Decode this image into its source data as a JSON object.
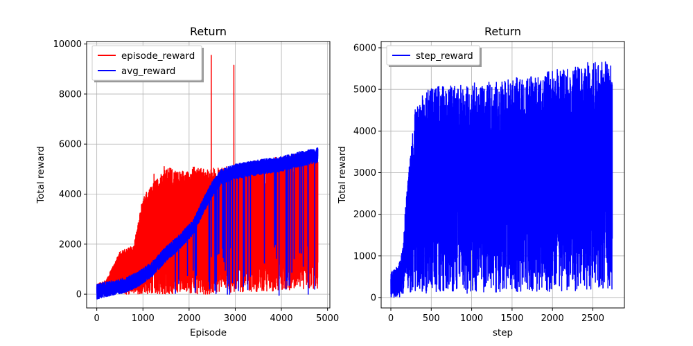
{
  "chart_data": [
    {
      "type": "line",
      "title": "Return",
      "xlabel": "Episode",
      "ylabel": "Total reward",
      "xlim": [
        -220,
        5050
      ],
      "ylim": [
        -550,
        10100
      ],
      "xticks": [
        0,
        1000,
        2000,
        3000,
        4000,
        5000
      ],
      "yticks": [
        0,
        2000,
        4000,
        6000,
        8000,
        10000
      ],
      "grid": true,
      "legend_position": "top-left",
      "series": [
        {
          "name": "episode_reward",
          "color": "#ff0000",
          "n_points": 4800,
          "envelope_x": [
            0,
            200,
            500,
            800,
            1000,
            1300,
            1500,
            1800,
            2100,
            2400,
            2800,
            3200,
            3600,
            4000,
            4400,
            4790
          ],
          "envelope_high": [
            400,
            550,
            1700,
            1950,
            3900,
            4600,
            5100,
            4900,
            5100,
            5000,
            5100,
            5250,
            5400,
            5500,
            5650,
            5700
          ],
          "envelope_low": [
            0,
            0,
            0,
            0,
            0,
            0,
            0,
            0,
            0,
            0,
            50,
            100,
            100,
            150,
            200,
            200
          ],
          "spikes": [
            [
              2480,
              9550
            ],
            [
              2970,
              9150
            ],
            [
              1240,
              4800
            ],
            [
              1460,
              5100
            ]
          ]
        },
        {
          "name": "avg_reward",
          "color": "#0000ff",
          "n_points": 4800,
          "trend_x": [
            0,
            200,
            600,
            900,
            1200,
            1500,
            1800,
            2100,
            2300,
            2500,
            2700,
            3000,
            3300,
            3600,
            4000,
            4400,
            4790
          ],
          "trend_y": [
            100,
            200,
            350,
            600,
            1000,
            1600,
            2100,
            2700,
            3500,
            4200,
            4700,
            4900,
            5000,
            5100,
            5200,
            5400,
            5550
          ],
          "noise": 300,
          "dips_x": [
            2480,
            2830,
            2880,
            3950,
            4100,
            4580,
            4720
          ],
          "dips_y": [
            1500,
            0,
            0,
            -50,
            200,
            0,
            200
          ]
        }
      ]
    },
    {
      "type": "line",
      "title": "Return",
      "xlabel": "step",
      "ylabel": "Total reward",
      "xlim": [
        -120,
        2890
      ],
      "ylim": [
        -250,
        6150
      ],
      "xticks": [
        0,
        500,
        1000,
        1500,
        2000,
        2500
      ],
      "yticks": [
        0,
        1000,
        2000,
        3000,
        4000,
        5000,
        6000
      ],
      "grid": true,
      "legend_position": "top-left",
      "series": [
        {
          "name": "step_reward",
          "color": "#0000ff",
          "n_points": 2750,
          "envelope_x": [
            0,
            100,
            150,
            200,
            250,
            300,
            400,
            500,
            700,
            1000,
            1300,
            1600,
            1900,
            2200,
            2500,
            2740
          ],
          "envelope_high": [
            600,
            800,
            1200,
            2800,
            3600,
            4600,
            4900,
            5050,
            5100,
            5150,
            5200,
            5300,
            5400,
            5550,
            5700,
            5800
          ],
          "envelope_low": [
            0,
            0,
            100,
            100,
            100,
            100,
            100,
            100,
            100,
            100,
            100,
            100,
            100,
            150,
            200,
            200
          ]
        }
      ]
    }
  ]
}
